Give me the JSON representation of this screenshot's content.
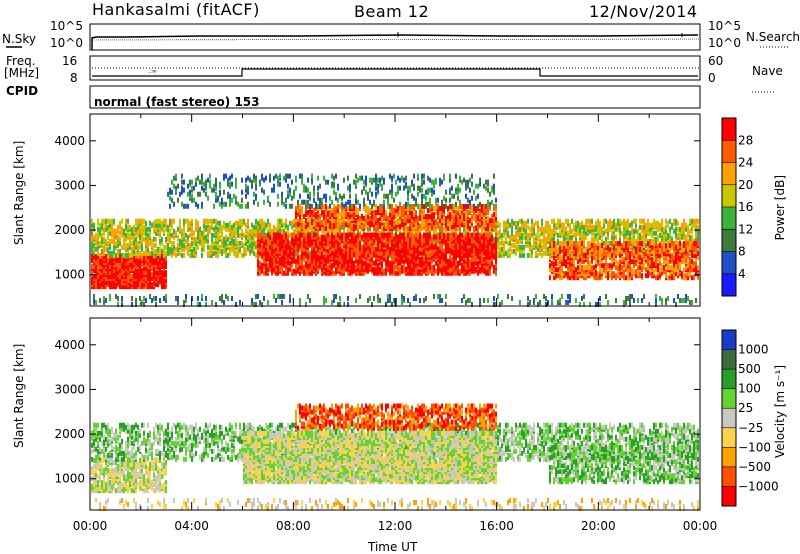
{
  "header": {
    "station": "Hankasalmi (fitACF)",
    "beam": "Beam 12",
    "date": "12/Nov/2014"
  },
  "top_panels": {
    "nsky_label": "N.Sky",
    "nsky_ticks": [
      "10^5",
      "10^0"
    ],
    "nsearch_label": "N.Search",
    "nsearch_ticks": [
      "10^5",
      "10^0"
    ],
    "freq_label": "Freq.",
    "freq_unit": "[MHz]",
    "freq_ticks": [
      "16",
      "8"
    ],
    "nave_label": "Nave",
    "nave_ticks": [
      "60",
      "0"
    ],
    "cpid_label": "CPID",
    "cpid_value": "normal (fast stereo) 153"
  },
  "colors": {
    "power_scale": [
      "#1a1aff",
      "#1e50c8",
      "#3c7b3c",
      "#3cb43c",
      "#c8c800",
      "#ffa000",
      "#ff5a00",
      "#ff0000"
    ],
    "velocity_scale": [
      "#1a3cc8",
      "#3c6e3c",
      "#28a028",
      "#64d232",
      "#c8c8c0",
      "#ffd24b",
      "#ffa000",
      "#ff5000",
      "#ff0000"
    ]
  },
  "chart_data": [
    {
      "type": "heatmap",
      "title": "",
      "ylabel": "Slant Range [km]",
      "yticks": [
        "1000",
        "2000",
        "3000",
        "4000"
      ],
      "ylim": [
        300,
        4600
      ],
      "xlim": [
        "00:00",
        "00:00"
      ],
      "colorbar_label": "Power [dB]",
      "colorbar_ticks": [
        "4",
        "8",
        "12",
        "16",
        "20",
        "24",
        "28"
      ]
    },
    {
      "type": "heatmap",
      "title": "",
      "ylabel": "Slant Range [km]",
      "yticks": [
        "1000",
        "2000",
        "3000",
        "4000"
      ],
      "ylim": [
        300,
        4600
      ],
      "xlabel": "Time UT",
      "xticks": [
        "00:00",
        "04:00",
        "08:00",
        "12:00",
        "16:00",
        "20:00",
        "00:00"
      ],
      "colorbar_label": "Velocity [m s⁻¹]",
      "colorbar_ticks": [
        "1000",
        "500",
        "100",
        "25",
        "−25",
        "−100",
        "−500",
        "−1000"
      ]
    }
  ]
}
